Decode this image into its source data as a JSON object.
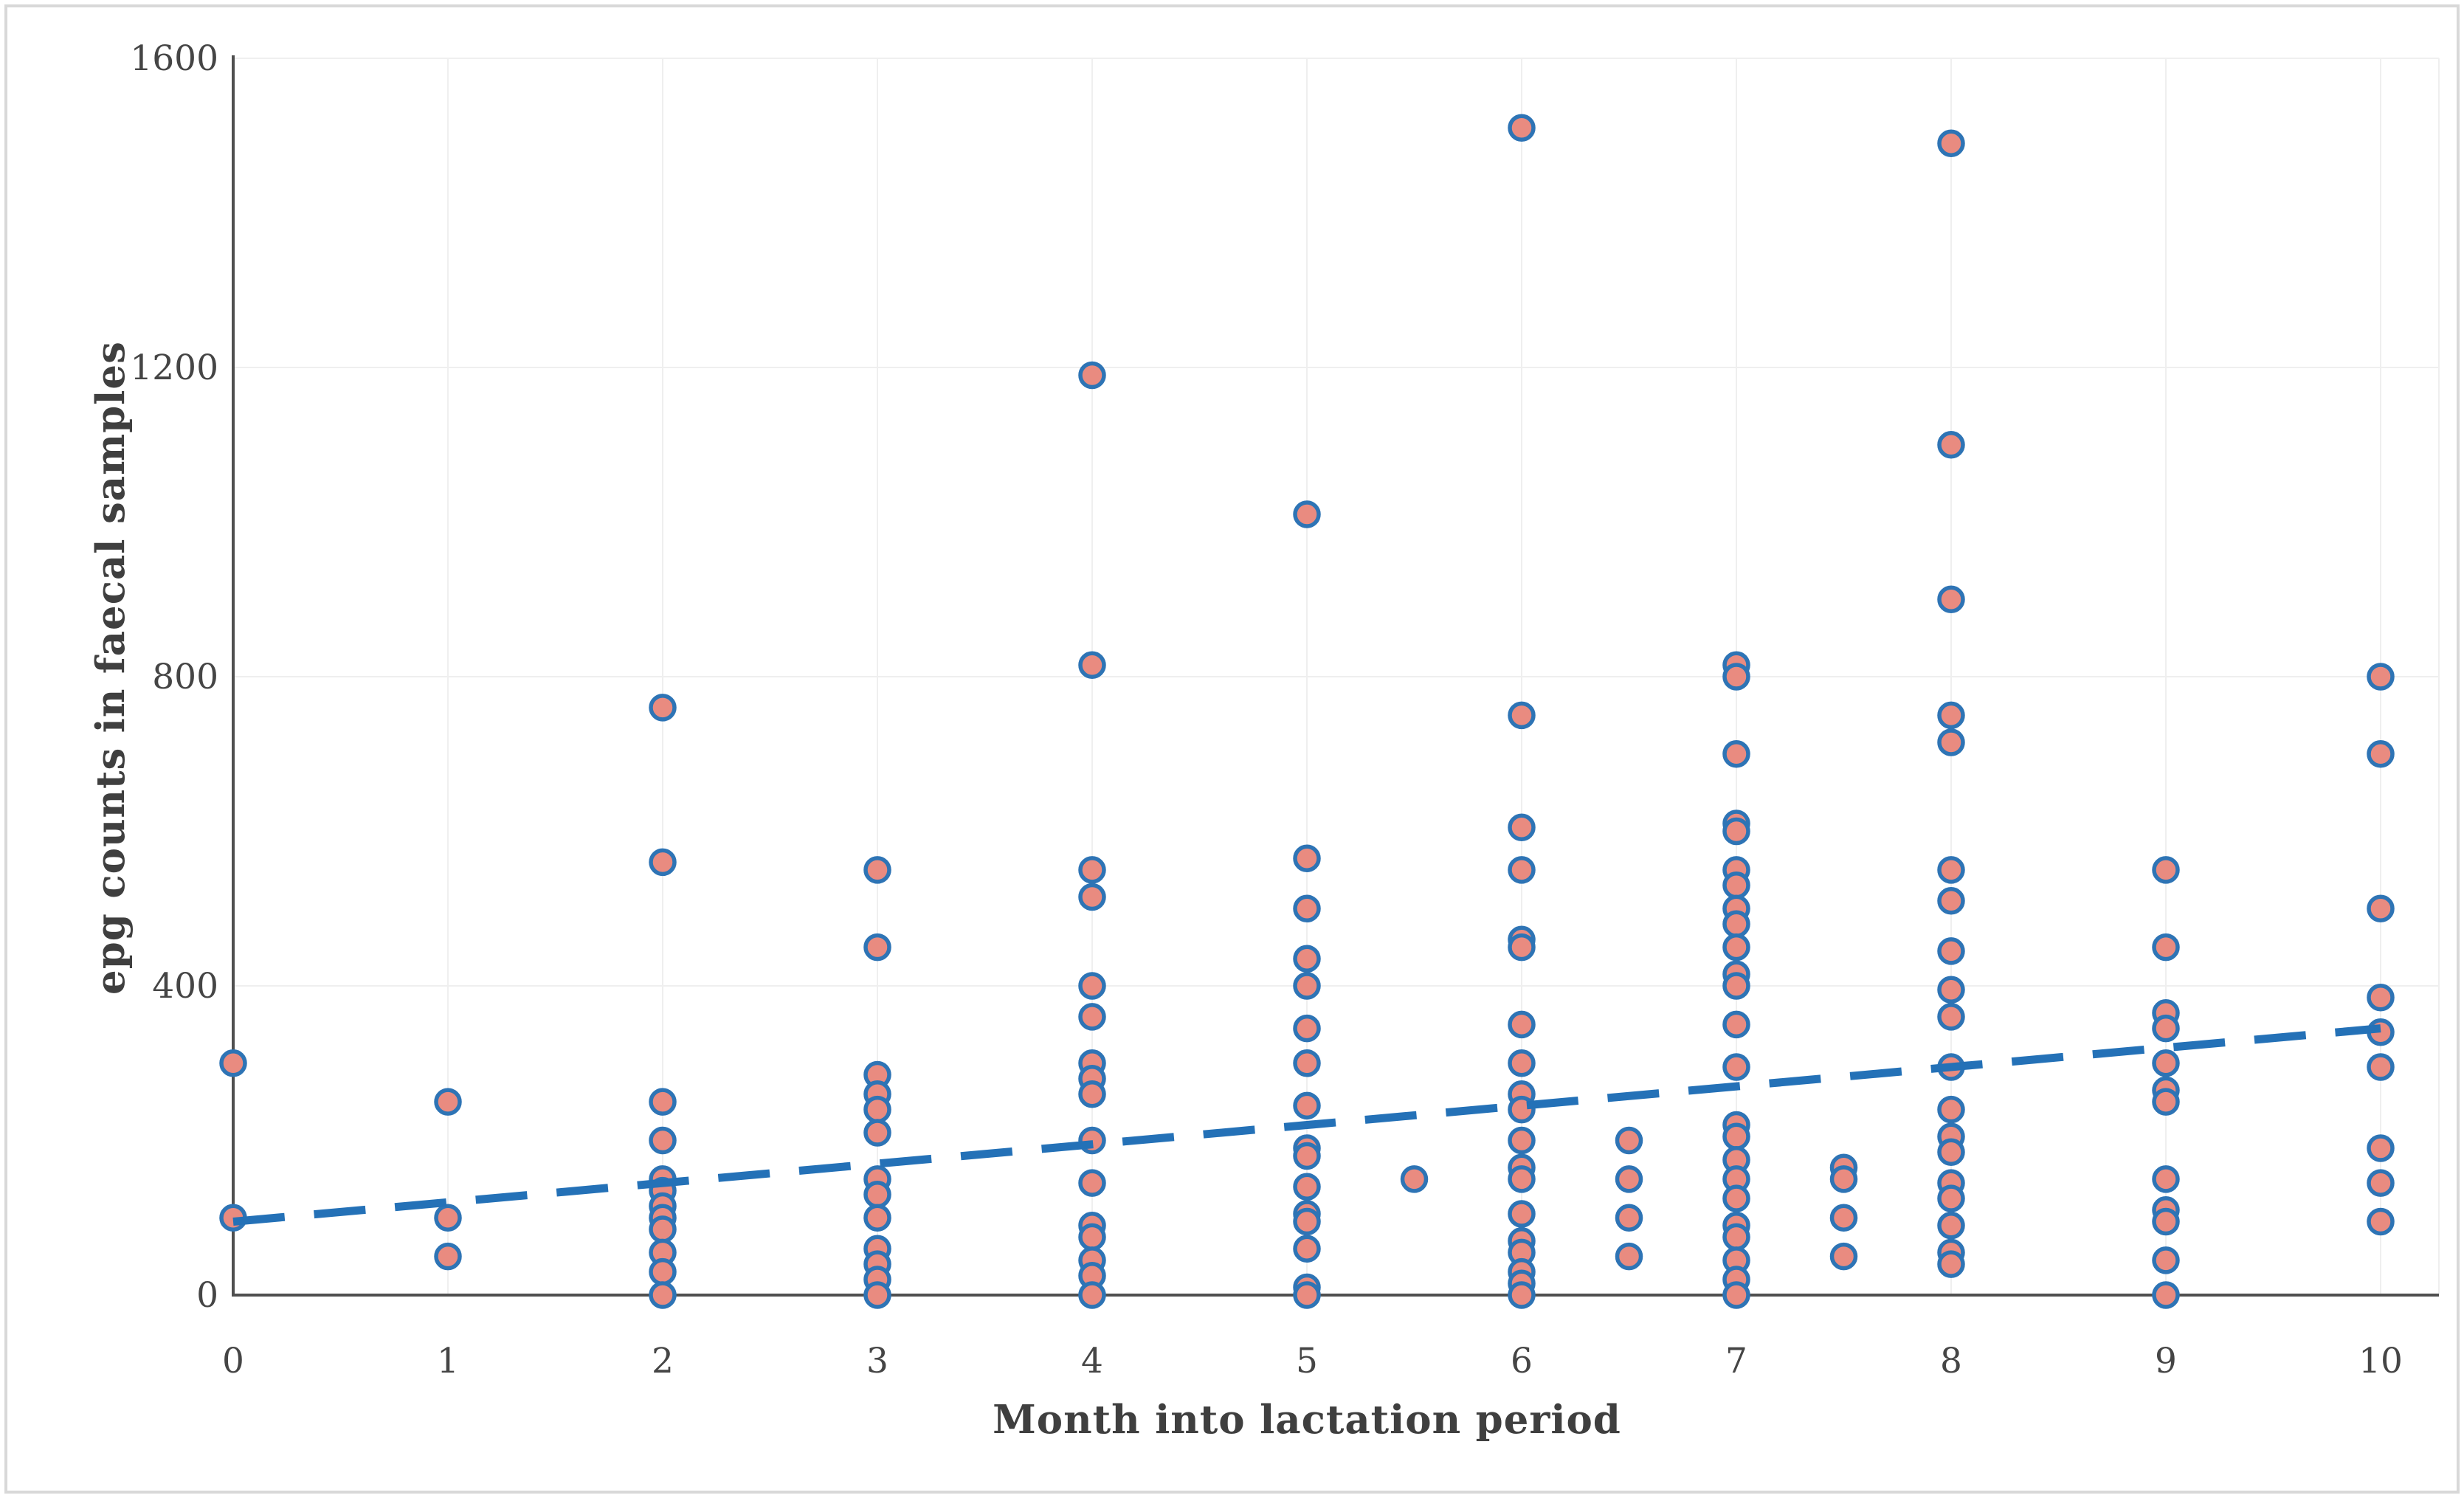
{
  "page": {
    "background": "#ffffff",
    "frame_border_color": "#d8d8d8"
  },
  "chart_data": {
    "type": "scatter",
    "title": "",
    "xlabel": "Month into lactation period",
    "ylabel": "epg counts in faecal samples",
    "xlim": [
      0,
      10.27
    ],
    "ylim": [
      0,
      1600
    ],
    "x_ticks": [
      "0",
      "1",
      "2",
      "3",
      "4",
      "5",
      "6",
      "7",
      "8",
      "9",
      "10"
    ],
    "y_ticks": [
      "0",
      "400",
      "800",
      "1200",
      "1600"
    ],
    "grid": true,
    "legend_position": "none",
    "colors": {
      "marker_fill": "#e98b80",
      "marker_stroke": "#2e74b5",
      "trend_line": "#2471b7",
      "axis_line": "#4f4f4f",
      "grid_line": "#efefef",
      "tick_text": "#454545"
    },
    "series": [
      {
        "name": "epg-observations",
        "type": "scatter",
        "groups": [
          {
            "x": 0,
            "values": [
              300,
              100
            ]
          },
          {
            "x": 1,
            "values": [
              250,
              100,
              50
            ]
          },
          {
            "x": 2,
            "values": [
              760,
              560,
              250,
              200,
              150,
              135,
              115,
              100,
              85,
              55,
              30,
              0
            ]
          },
          {
            "x": 3,
            "values": [
              550,
              450,
              285,
              260,
              240,
              210,
              150,
              130,
              100,
              60,
              40,
              20,
              0
            ]
          },
          {
            "x": 4,
            "values": [
              1190,
              815,
              550,
              515,
              400,
              360,
              300,
              280,
              260,
              200,
              145,
              90,
              75,
              45,
              25,
              0
            ]
          },
          {
            "x": 5,
            "values": [
              1010,
              565,
              500,
              435,
              400,
              345,
              300,
              245,
              190,
              180,
              140,
              105,
              95,
              60,
              10,
              0
            ]
          },
          {
            "x": 5.5,
            "values": [
              150
            ]
          },
          {
            "x": 6,
            "values": [
              1510,
              750,
              605,
              550,
              460,
              450,
              350,
              300,
              260,
              240,
              200,
              165,
              150,
              105,
              70,
              55,
              30,
              15,
              0
            ]
          },
          {
            "x": 6.5,
            "values": [
              200,
              150,
              100,
              50
            ]
          },
          {
            "x": 7,
            "values": [
              815,
              800,
              700,
              610,
              600,
              550,
              530,
              500,
              480,
              450,
              415,
              400,
              350,
              295,
              220,
              205,
              175,
              150,
              125,
              90,
              75,
              45,
              20,
              0
            ]
          },
          {
            "x": 7.5,
            "values": [
              165,
              150,
              100,
              50
            ]
          },
          {
            "x": 8,
            "values": [
              1490,
              1100,
              900,
              750,
              715,
              550,
              510,
              445,
              395,
              360,
              295,
              240,
              205,
              185,
              145,
              125,
              90,
              55,
              40
            ]
          },
          {
            "x": 9,
            "values": [
              550,
              450,
              365,
              345,
              300,
              265,
              250,
              150,
              110,
              95,
              45,
              0
            ]
          },
          {
            "x": 10,
            "values": [
              800,
              700,
              500,
              385,
              340,
              295,
              190,
              145,
              95
            ]
          }
        ]
      },
      {
        "name": "linear-trend",
        "type": "line",
        "style": "dashed",
        "x": [
          0,
          10
        ],
        "y": [
          95,
          345
        ]
      }
    ]
  }
}
